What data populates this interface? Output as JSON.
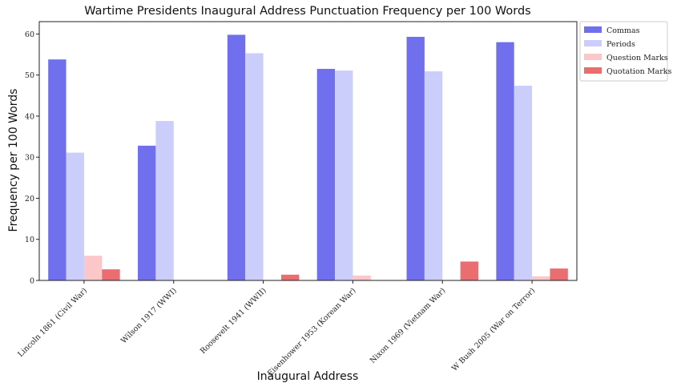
{
  "chart_data": {
    "type": "bar",
    "title": "Wartime Presidents Inaugural Address Punctuation Frequency per 100 Words",
    "xlabel": "Inaugural Address",
    "ylabel": "Frequency per 100 Words",
    "ylim": [
      0,
      63
    ],
    "yticks": [
      "0",
      "10",
      "20",
      "30",
      "40",
      "50",
      "60"
    ],
    "legend_position": "outside-top-right",
    "grid": false,
    "categories": [
      "Lincoln 1861 (Civil War)",
      "Wilson 1917 (WWI)",
      "Roosevelt 1941 (WWII)",
      "Eisenhower 1953 (Korean War)",
      "Nixon 1969 (Vietnam War)",
      "W Bush 2005 (War on Terror)"
    ],
    "series": [
      {
        "name": "Commas",
        "color": "#7070ee",
        "values": [
          53.8,
          32.8,
          59.8,
          51.5,
          59.3,
          58.0
        ]
      },
      {
        "name": "Periods",
        "color": "#cbcdfb",
        "values": [
          31.1,
          38.8,
          55.3,
          51.1,
          50.9,
          47.4
        ]
      },
      {
        "name": "Question Marks",
        "color": "#fbc7c9",
        "values": [
          6.0,
          0,
          0,
          1.2,
          0,
          1.0
        ]
      },
      {
        "name": "Quotation Marks",
        "color": "#ea6d6f",
        "values": [
          2.7,
          0,
          1.4,
          0,
          4.6,
          2.9
        ]
      }
    ]
  }
}
